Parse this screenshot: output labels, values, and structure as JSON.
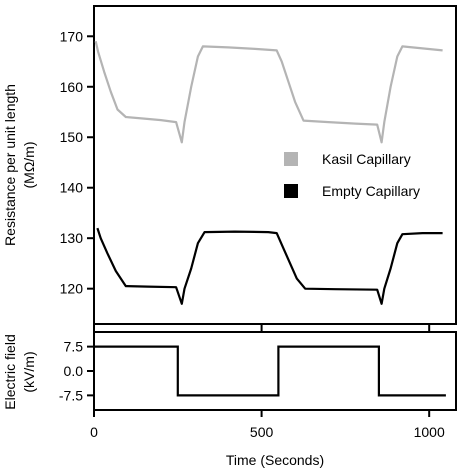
{
  "chart_data": [
    {
      "type": "line",
      "xlabel": "Time (Seconds)",
      "ylabel": "Resistance per unit length",
      "yunit": "(MΩ/m)",
      "xlim": [
        0,
        1080
      ],
      "ylim": [
        113,
        176
      ],
      "xticks": [
        0,
        500,
        1000
      ],
      "yticks": [
        120,
        130,
        140,
        150,
        160,
        170
      ],
      "legend": {
        "placement": "right",
        "entries": [
          {
            "name": "Kasil Capillary",
            "color": "#b4b4b4"
          },
          {
            "name": "Empty Capillary",
            "color": "#000000"
          }
        ]
      },
      "series": [
        {
          "name": "Kasil Capillary",
          "color": "#b4b4b4",
          "points": [
            [
              5,
              169
            ],
            [
              12,
              167
            ],
            [
              30,
              163
            ],
            [
              50,
              159
            ],
            [
              70,
              155.5
            ],
            [
              95,
              154
            ],
            [
              150,
              153.7
            ],
            [
              200,
              153.4
            ],
            [
              245,
              153
            ],
            [
              262,
              149
            ],
            [
              270,
              153
            ],
            [
              290,
              160
            ],
            [
              310,
              166
            ],
            [
              325,
              168
            ],
            [
              400,
              167.8
            ],
            [
              480,
              167.5
            ],
            [
              545,
              167.2
            ],
            [
              560,
              165
            ],
            [
              580,
              161
            ],
            [
              600,
              157
            ],
            [
              625,
              153.3
            ],
            [
              700,
              153
            ],
            [
              780,
              152.7
            ],
            [
              845,
              152.5
            ],
            [
              858,
              149
            ],
            [
              866,
              153
            ],
            [
              885,
              160
            ],
            [
              905,
              166
            ],
            [
              920,
              168
            ],
            [
              980,
              167.6
            ],
            [
              1040,
              167.2
            ]
          ]
        },
        {
          "name": "Empty Capillary",
          "color": "#000000",
          "points": [
            [
              10,
              132
            ],
            [
              20,
              130
            ],
            [
              40,
              127
            ],
            [
              65,
              123.5
            ],
            [
              95,
              120.5
            ],
            [
              160,
              120.4
            ],
            [
              245,
              120.3
            ],
            [
              262,
              117
            ],
            [
              270,
              120
            ],
            [
              290,
              124
            ],
            [
              310,
              129
            ],
            [
              330,
              131.2
            ],
            [
              420,
              131.3
            ],
            [
              520,
              131.2
            ],
            [
              545,
              131
            ],
            [
              565,
              128
            ],
            [
              585,
              125
            ],
            [
              605,
              122
            ],
            [
              630,
              120
            ],
            [
              720,
              119.9
            ],
            [
              845,
              119.8
            ],
            [
              858,
              117
            ],
            [
              866,
              120
            ],
            [
              885,
              124
            ],
            [
              905,
              129
            ],
            [
              920,
              130.8
            ],
            [
              980,
              131
            ],
            [
              1040,
              131
            ]
          ]
        }
      ]
    },
    {
      "type": "line",
      "xlabel": "Time (Seconds)",
      "ylabel": "Electric field",
      "yunit": "(kV/m)",
      "xlim": [
        0,
        1080
      ],
      "ylim": [
        -12,
        12
      ],
      "xticks": [
        0,
        500,
        1000
      ],
      "yticks": [
        7.5,
        0.0,
        -7.5
      ],
      "ytick_labels": [
        "7.5",
        "0.0",
        "-7.5"
      ],
      "series": [
        {
          "color": "#000000",
          "points": [
            [
              0,
              7.5
            ],
            [
              250,
              7.5
            ],
            [
              250,
              -7.5
            ],
            [
              550,
              -7.5
            ],
            [
              550,
              7.5
            ],
            [
              850,
              7.5
            ],
            [
              850,
              -7.5
            ],
            [
              1050,
              -7.5
            ]
          ]
        }
      ]
    }
  ]
}
